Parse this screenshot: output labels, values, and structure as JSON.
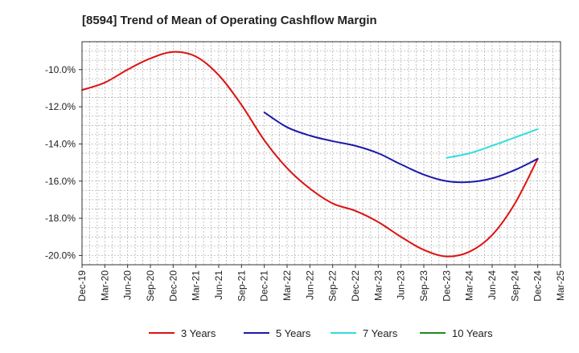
{
  "chart_data": {
    "type": "line",
    "title": "[8594]  Trend of Mean of Operating Cashflow Margin",
    "xlabel": "",
    "ylabel": "",
    "x_ticks": [
      "Dec-19",
      "Mar-20",
      "Jun-20",
      "Sep-20",
      "Dec-20",
      "Mar-21",
      "Jun-21",
      "Sep-21",
      "Dec-21",
      "Mar-22",
      "Jun-22",
      "Sep-22",
      "Dec-22",
      "Mar-23",
      "Jun-23",
      "Sep-23",
      "Dec-23",
      "Mar-24",
      "Jun-24",
      "Sep-24",
      "Dec-24",
      "Mar-25"
    ],
    "y_ticks": [
      -10.0,
      -12.0,
      -14.0,
      -16.0,
      -18.0,
      -20.0
    ],
    "y_tick_labels": [
      "-10.0%",
      "-12.0%",
      "-14.0%",
      "-16.0%",
      "-18.0%",
      "-20.0%"
    ],
    "ylim": [
      -20.5,
      -8.5
    ],
    "grid": true,
    "legend_position": "bottom",
    "series": [
      {
        "name": "3 Years",
        "color": "#dd1111",
        "x_index": [
          0,
          1,
          2,
          3,
          4,
          5,
          6,
          7,
          8,
          9,
          10,
          11,
          12,
          13,
          14,
          15,
          16,
          17,
          18,
          19,
          20
        ],
        "values": [
          -11.1,
          -10.7,
          -10.0,
          -9.4,
          -9.05,
          -9.3,
          -10.3,
          -11.9,
          -13.8,
          -15.3,
          -16.4,
          -17.2,
          -17.6,
          -18.2,
          -19.0,
          -19.7,
          -20.05,
          -19.8,
          -18.9,
          -17.2,
          -14.8
        ]
      },
      {
        "name": "5 Years",
        "color": "#1a1aaa",
        "x_index": [
          8,
          9,
          10,
          11,
          12,
          13,
          14,
          15,
          16,
          17,
          18,
          19,
          20
        ],
        "values": [
          -12.3,
          -13.1,
          -13.55,
          -13.85,
          -14.1,
          -14.5,
          -15.1,
          -15.65,
          -16.0,
          -16.05,
          -15.85,
          -15.4,
          -14.8
        ]
      },
      {
        "name": "7 Years",
        "color": "#33dddd",
        "x_index": [
          16,
          17,
          18,
          19,
          20
        ],
        "values": [
          -14.75,
          -14.5,
          -14.1,
          -13.65,
          -13.2
        ]
      },
      {
        "name": "10 Years",
        "color": "#228822",
        "x_index": [],
        "values": []
      }
    ]
  }
}
